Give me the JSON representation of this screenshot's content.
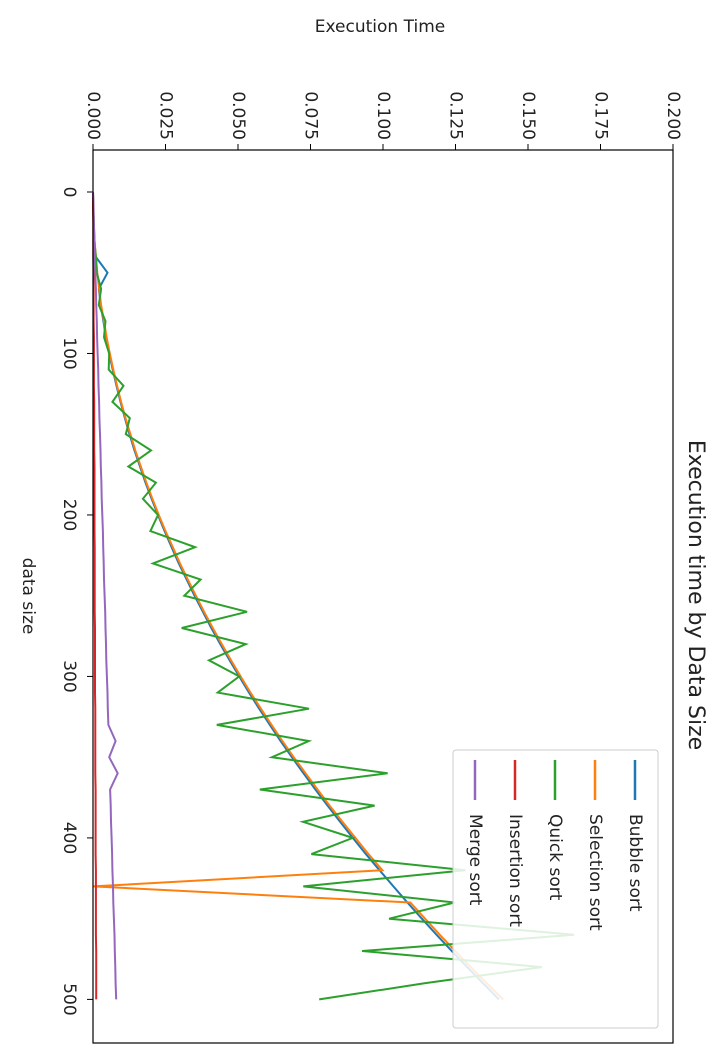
{
  "chart_data": {
    "type": "line",
    "title": "Execution time by Data Size",
    "x_label": "data size",
    "y_label": "Execution Time",
    "x": [
      0,
      10,
      20,
      30,
      40,
      50,
      60,
      70,
      80,
      90,
      100,
      110,
      120,
      130,
      140,
      150,
      160,
      170,
      180,
      190,
      200,
      210,
      220,
      230,
      240,
      250,
      260,
      270,
      280,
      290,
      300,
      310,
      320,
      330,
      340,
      350,
      360,
      370,
      380,
      390,
      400,
      410,
      420,
      430,
      440,
      450,
      460,
      470,
      480,
      490,
      500
    ],
    "series": [
      {
        "name": "Bubble sort",
        "color": "#1f77b4",
        "values": [
          0,
          0.0001,
          0.0002,
          0.0005,
          0.0009,
          0.005,
          0.002,
          0.0027,
          0.0036,
          0.0045,
          0.0056,
          0.0068,
          0.0081,
          0.0095,
          0.011,
          0.0126,
          0.0143,
          0.0162,
          0.0181,
          0.0202,
          0.0224,
          0.0247,
          0.0271,
          0.0296,
          0.0323,
          0.035,
          0.0379,
          0.0408,
          0.0439,
          0.0471,
          0.0504,
          0.0538,
          0.0573,
          0.061,
          0.0647,
          0.0686,
          0.0726,
          0.0767,
          0.0809,
          0.0852,
          0.0896,
          0.0941,
          0.0988,
          0.1036,
          0.1084,
          0.1134,
          0.1185,
          0.1237,
          0.129,
          0.1345,
          0.14
        ]
      },
      {
        "name": "Selection sort",
        "color": "#ff7f0e",
        "values": [
          0,
          0.0001,
          0.0003,
          0.0005,
          0.001,
          0.0015,
          0.0021,
          0.0028,
          0.0038,
          0.0047,
          0.0058,
          0.007,
          0.0083,
          0.0097,
          0.0112,
          0.0129,
          0.0146,
          0.0165,
          0.0184,
          0.0205,
          0.0227,
          0.025,
          0.0275,
          0.03,
          0.0327,
          0.0355,
          0.0383,
          0.0413,
          0.0444,
          0.0476,
          0.0509,
          0.0543,
          0.0579,
          0.0616,
          0.0653,
          0.0692,
          0.0733,
          0.0774,
          0.0816,
          0.086,
          0.0905,
          0.095,
          0.0998,
          0,
          0.1094,
          0.1145,
          0.1196,
          0.1249,
          0.1302,
          0.1358,
          0.1414
        ]
      },
      {
        "name": "Quick sort",
        "color": "#2ca02c",
        "values": [
          0,
          0.0001,
          0.0003,
          0.0004,
          0.001,
          0.0013,
          0.0028,
          0.002,
          0.0043,
          0.0038,
          0.0056,
          0.0054,
          0.0105,
          0.0067,
          0.0127,
          0.0113,
          0.02,
          0.0122,
          0.0217,
          0.0172,
          0.0224,
          0.0198,
          0.0352,
          0.0207,
          0.0371,
          0.0315,
          0.0531,
          0.0306,
          0.0527,
          0.04,
          0.0504,
          0.043,
          0.0745,
          0.0427,
          0.0744,
          0.0617,
          0.1016,
          0.0575,
          0.0971,
          0.0724,
          0.0896,
          0.0753,
          0.1284,
          0.0725,
          0.1247,
          0.1021,
          0.1659,
          0.0928,
          0.1548,
          0.1143,
          0.078
        ]
      },
      {
        "name": "Insertion sort",
        "color": "#d62728",
        "values": [
          0,
          0,
          0.0001,
          0.0001,
          0.0001,
          0.0002,
          0.0002,
          0.0002,
          0.0002,
          0.0003,
          0.0003,
          0.0003,
          0.0003,
          0.0004,
          0.0004,
          0.0004,
          0.0004,
          0.0005,
          0.0005,
          0.0005,
          0.0005,
          0.0005,
          0.0006,
          0.0006,
          0.0006,
          0.0006,
          0.0006,
          0.0007,
          0.0007,
          0.0007,
          0.0007,
          0.0007,
          0.0008,
          0.0008,
          0.0008,
          0.0008,
          0.0008,
          0.0009,
          0.0009,
          0.0009,
          0.0009,
          0.0009,
          0.001,
          0.001,
          0.001,
          0.001,
          0.001,
          0.0011,
          0.0011,
          0.0011,
          0.0011
        ]
      },
      {
        "name": "Merge sort",
        "color": "#9467bd",
        "values": [
          0,
          0.0002,
          0.0003,
          0.0005,
          0.0006,
          0.0008,
          0.001,
          0.0011,
          0.0013,
          0.0014,
          0.0016,
          0.0018,
          0.0019,
          0.0021,
          0.0022,
          0.0024,
          0.0026,
          0.0027,
          0.0029,
          0.003,
          0.0032,
          0.0034,
          0.0035,
          0.0037,
          0.0038,
          0.004,
          0.0042,
          0.0043,
          0.0045,
          0.0046,
          0.0048,
          0.005,
          0.0051,
          0.0053,
          0.0078,
          0.0056,
          0.0085,
          0.0059,
          0.0061,
          0.0062,
          0.0064,
          0.0066,
          0.0067,
          0.0069,
          0.007,
          0.0072,
          0.0074,
          0.0075,
          0.0077,
          0.0078,
          0.008
        ]
      }
    ],
    "xlim": [
      -26,
      527
    ],
    "ylim": [
      0,
      0.2
    ],
    "xticks": [
      0,
      100,
      200,
      300,
      400,
      500
    ],
    "yticks": [
      {
        "value": 0,
        "label": "0.000"
      },
      0.025,
      {
        "value": 0.05,
        "label": "0.050"
      },
      0.075,
      {
        "value": 0.1,
        "label": "0.100"
      },
      0.125,
      {
        "value": 0.15,
        "label": "0.150"
      },
      0.175,
      {
        "value": 0.2,
        "label": "0.200"
      }
    ],
    "legend": "lower right"
  }
}
